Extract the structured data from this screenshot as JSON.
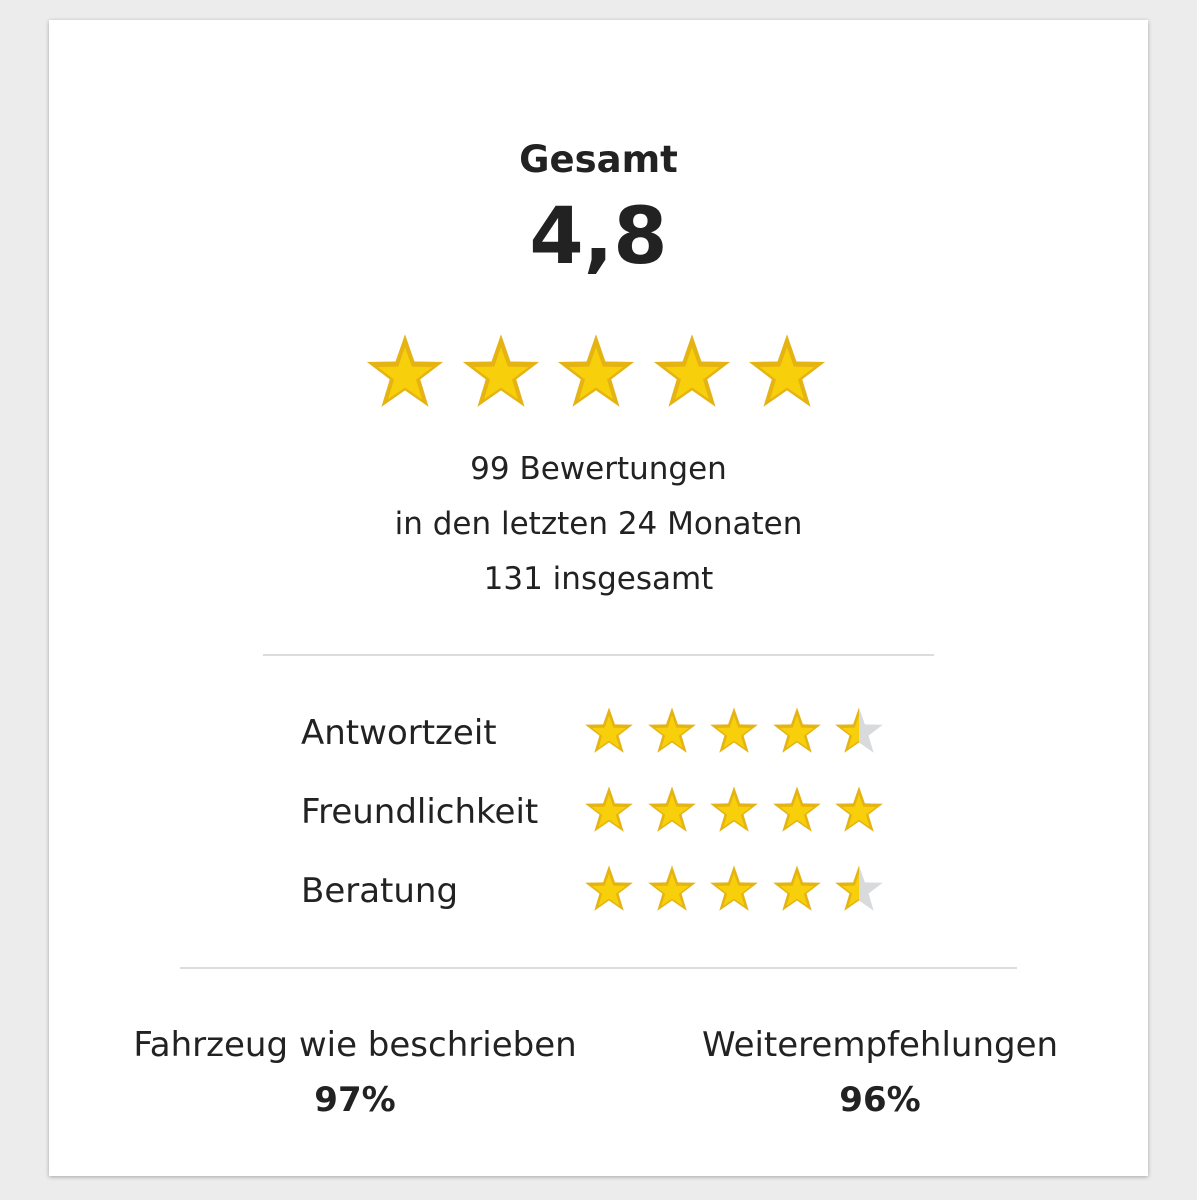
{
  "summary": {
    "title": "Gesamt",
    "score": "4,8",
    "score_value": 4.8,
    "stars_filled": 5,
    "reviews_count": "99 Bewertungen",
    "period": "in den letzten 24 Monaten",
    "total": "131 insgesamt"
  },
  "categories": [
    {
      "label": "Antwortzeit",
      "rating": 4.5
    },
    {
      "label": "Freundlichkeit",
      "rating": 5
    },
    {
      "label": "Beratung",
      "rating": 4.5
    }
  ],
  "stats": [
    {
      "label": "Fahrzeug wie beschrieben",
      "value": "97%"
    },
    {
      "label": "Weiterempfehlungen",
      "value": "96%"
    }
  ],
  "colors": {
    "star_fill": "#f7cf0a",
    "star_outline": "#e6b412",
    "star_empty": "#d9dadc",
    "divider": "#dcdcdc"
  }
}
